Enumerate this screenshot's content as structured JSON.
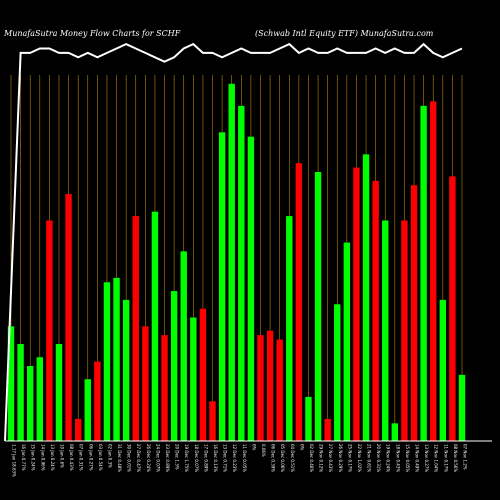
{
  "header": {
    "left_title": "MunafaSutra  Money Flow  Charts for SCHF",
    "right_title": "(Schwab Intl Equity ETF) MunafaSutra.com"
  },
  "colors": {
    "background": "#000000",
    "up": "#00ff00",
    "down": "#ff0000",
    "grid": "#b8860b",
    "line": "#ffffff",
    "baseline": "#ffffff",
    "text": "#ffffff"
  },
  "chart_data": {
    "type": "bar",
    "ylim": [
      0,
      100
    ],
    "grid": "vertical",
    "categories": [
      "Fri 17 Jan 2025 18.63%",
      "Thu 16 Jan 2025 0.77%",
      "Wed 15 Jan 2025 0.24%",
      "Tue 14 Jan 2025 0.96%",
      "Mon 13 Jan 2025 0.24%",
      "Fri 10 Jan 2025 0.6%",
      "Wed 08 Jan 2025 0.43%",
      "Tue 07 Jan 2025 0.31%",
      "Mon 06 Jan 2025 0.27%",
      "Fri 03 Jan 2025 0.54%",
      "Thu 02 Jan 2025 0.3%",
      "Tue 31 Dec 2024 0.48%",
      "Mon 30 Dec 2024 0.01%",
      "Fri 27 Dec 2024 0.47%",
      "Thu 26 Dec 2024 0.24%",
      "Tue 24 Dec 2024 0.07%",
      "Mon 23 Dec 2024 0.89%",
      "Fri 20 Dec 2024 1.3%",
      "Thu 19 Dec 2024 1.75%",
      "Wed 18 Dec 2024 0.07%",
      "Tue 17 Dec 2024 0.89%",
      "Mon 16 Dec 2024 0.13%",
      "Fri 13 Dec 2024 0.71%",
      "Thu 12 Dec 2024 0.23%",
      "Wed 11 Dec 2024 0.05%",
      "Tue 10 Dec 2024 0%",
      "Mon 09 Dec 2024 0.06%",
      "Fri 06 Dec 2024 0.39%",
      "Thu 05 Dec 2024 0.06%",
      "Wed 04 Dec 2024 0.51%",
      "Tue 03 Dec 2024 0%",
      "Mon 02 Dec 2024 0.46%",
      "Fri 29 Nov 2024 0.12%",
      "Wed 27 Nov 2024 0.43%",
      "Tue 26 Nov 2024 0.29%",
      "Mon 25 Nov 2024 0.17%",
      "Fri 22 Nov 2024 1.02%",
      "Thu 21 Nov 2024 0.61%",
      "Wed 20 Nov 2024 0.31%",
      "Tue 19 Nov 2024 0.24%",
      "Mon 18 Nov 2024 0.43%",
      "Fri 15 Nov 2024 0.05%",
      "Thu 14 Nov 2024 0.49%",
      "Wed 13 Nov 2024 0.27%",
      "Tue 12 Nov 2024 1.04%",
      "Mon 11 Nov 2024 0.17%",
      "Fri 08 Nov 2024 0.56%",
      "Thu 07 Nov 2024 1.2%"
    ],
    "tick_labels": [
      "1.17 Jan 18.63%",
      "16 Jan 0.77%",
      "15 Jan 0.24%",
      "14 Jan 0.96%",
      "13 Jan 0.24%",
      "10 Jan 0.6%",
      "08 Jan 0.43%",
      "07 Jan 0.31%",
      "06 Jan 0.27%",
      "03 Jan 0.54%",
      "02 Jan 0.3%",
      "31 Dec 0.48%",
      "30 Dec 0.01%",
      "27 Dec 0.47%",
      "26 Dec 0.24%",
      "24 Dec 0.07%",
      "23 Dec 0.89%",
      "20 Dec 1.3%",
      "19 Dec 1.75%",
      "18 Dec 0.07%",
      "17 Dec 0.89%",
      "16 Dec 0.13%",
      "13 Dec 0.71%",
      "12 Dec 0.23%",
      "11 Dec 0.05%",
      "0%",
      "0.06%",
      "06 Dec 0.39%",
      "05 Dec 0.06%",
      "04 Dec 0.51%",
      "0%",
      "02 Dec 0.46%",
      "29 Nov 0.12%",
      "27 Nov 0.43%",
      "26 Nov 0.29%",
      "25 Nov 0.17%",
      "22 Nov 1.02%",
      "21 Nov 0.61%",
      "20 Nov 0.31%",
      "19 Nov 0.24%",
      "18 Nov 0.43%",
      "15 Nov 0.05%",
      "14 Nov 0.49%",
      "13 Nov 0.27%",
      "12 Nov 1.04%",
      "11 Nov 0.17%",
      "08 Nov 0.56%",
      "07 Nov 1.2%"
    ],
    "colors": [
      "green",
      "green",
      "green",
      "green",
      "red",
      "green",
      "red",
      "red",
      "green",
      "red",
      "green",
      "green",
      "green",
      "red",
      "red",
      "green",
      "red",
      "green",
      "green",
      "green",
      "red",
      "red",
      "green",
      "green",
      "green",
      "green",
      "red",
      "red",
      "red",
      "green",
      "red",
      "green",
      "green",
      "red",
      "green",
      "green",
      "red",
      "green",
      "red",
      "green",
      "green",
      "red",
      "red",
      "green",
      "red",
      "green",
      "red",
      "green"
    ],
    "values": [
      26,
      22,
      17,
      19,
      50,
      22,
      56,
      5,
      14,
      18,
      36,
      37,
      32,
      51,
      26,
      52,
      24,
      34,
      43,
      28,
      30,
      9,
      70,
      81,
      76,
      69,
      24,
      25,
      23,
      51,
      63,
      10,
      61,
      5,
      31,
      45,
      62,
      65,
      59,
      50,
      4,
      50,
      58,
      76,
      77,
      32,
      60,
      15
    ],
    "series": [
      {
        "name": "",
        "type": "line",
        "values": [
          0,
          88,
          88,
          89,
          89,
          88,
          88,
          87,
          88,
          87,
          88,
          89,
          90,
          89,
          88,
          87,
          86,
          87,
          89,
          90,
          88,
          88,
          87,
          88,
          89,
          88,
          88,
          88,
          89,
          90,
          88,
          89,
          88,
          88,
          89,
          88,
          88,
          88,
          89,
          88,
          89,
          88,
          88,
          90,
          88,
          87,
          88,
          89
        ]
      }
    ]
  }
}
